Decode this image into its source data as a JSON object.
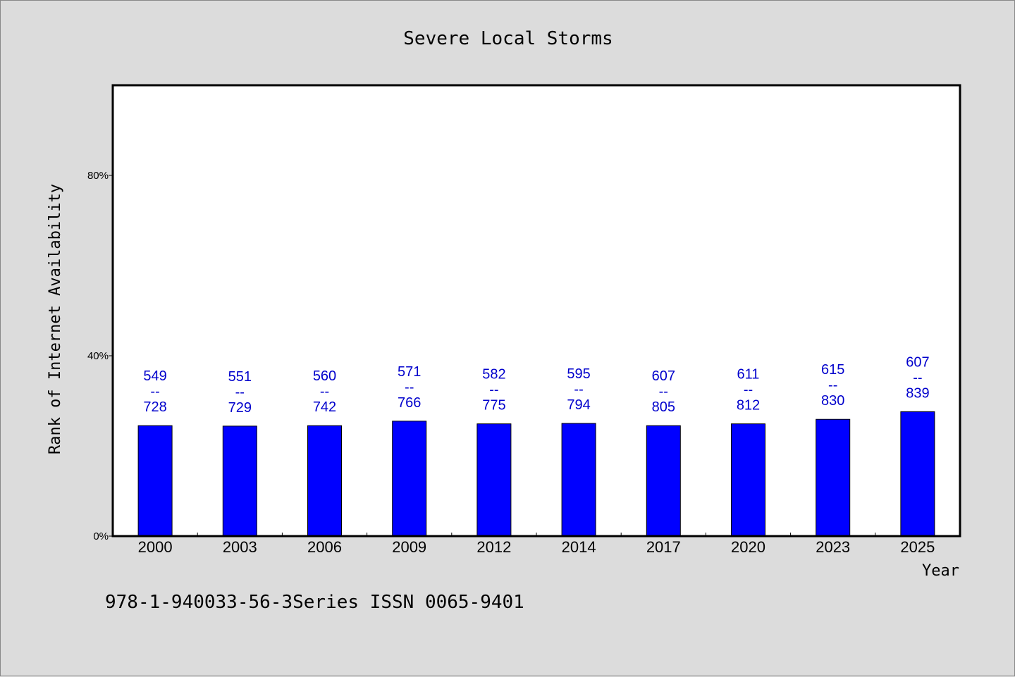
{
  "chart_data": {
    "type": "bar",
    "title": "Severe Local Storms",
    "xlabel": "Year",
    "ylabel": "Rank of Internet Availability",
    "ylim": [
      0,
      100
    ],
    "yticks": [
      {
        "value": 0,
        "label": "0%"
      },
      {
        "value": 40,
        "label": "40%"
      },
      {
        "value": 80,
        "label": "80%"
      }
    ],
    "categories": [
      "2000",
      "2003",
      "2006",
      "2009",
      "2012",
      "2014",
      "2017",
      "2020",
      "2023",
      "2025"
    ],
    "values": [
      24.5,
      24.4,
      24.5,
      25.5,
      24.9,
      25.0,
      24.5,
      24.9,
      25.9,
      27.6
    ],
    "data_labels": [
      {
        "top": "549",
        "sep": "--",
        "bottom": "728"
      },
      {
        "top": "551",
        "sep": "--",
        "bottom": "729"
      },
      {
        "top": "560",
        "sep": "--",
        "bottom": "742"
      },
      {
        "top": "571",
        "sep": "--",
        "bottom": "766"
      },
      {
        "top": "582",
        "sep": "--",
        "bottom": "775"
      },
      {
        "top": "595",
        "sep": "--",
        "bottom": "794"
      },
      {
        "top": "607",
        "sep": "--",
        "bottom": "805"
      },
      {
        "top": "611",
        "sep": "--",
        "bottom": "812"
      },
      {
        "top": "615",
        "sep": "--",
        "bottom": "830"
      },
      {
        "top": "607",
        "sep": "--",
        "bottom": "839"
      }
    ],
    "bar_color": "#0000ff",
    "label_color": "#0000cc",
    "plot_background": "#ffffff",
    "page_background": "#dcdcdc",
    "grid": false,
    "legend": "none"
  },
  "footnote": "978-1-940033-56-3Series ISSN 0065-9401"
}
